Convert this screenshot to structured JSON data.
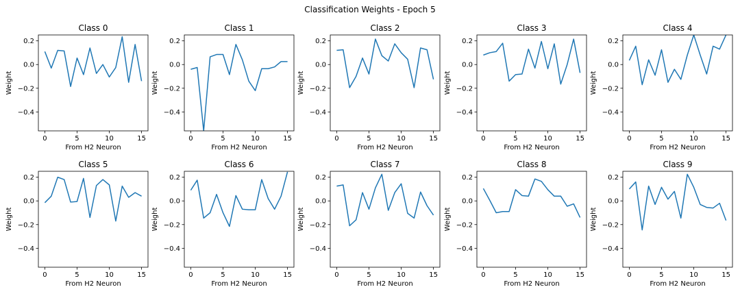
{
  "figure": {
    "title": "Classification Weights - Epoch 5"
  },
  "chart_data": [
    {
      "type": "line",
      "title": "Class 0",
      "xlabel": "From H2 Neuron",
      "ylabel": "Weight",
      "xlim": [
        -1,
        16
      ],
      "ylim": [
        -0.56,
        0.25
      ],
      "xticks": [
        0,
        5,
        10,
        15
      ],
      "yticks": [
        0.2,
        0.0,
        -0.2,
        -0.4
      ],
      "x": [
        0,
        1,
        2,
        3,
        4,
        5,
        6,
        7,
        8,
        9,
        10,
        11,
        12,
        13,
        14,
        15
      ],
      "series": [
        {
          "values": [
            0.11,
            -0.03,
            0.12,
            0.115,
            -0.185,
            0.055,
            -0.085,
            0.14,
            -0.075,
            0.0,
            -0.105,
            -0.025,
            0.235,
            -0.15,
            0.17,
            -0.14
          ]
        }
      ]
    },
    {
      "type": "line",
      "title": "Class 1",
      "xlabel": "From H2 Neuron",
      "ylabel": "Weight",
      "xlim": [
        -1,
        16
      ],
      "ylim": [
        -0.56,
        0.25
      ],
      "xticks": [
        0,
        5,
        10,
        15
      ],
      "yticks": [
        0.2,
        0.0,
        -0.2,
        -0.4
      ],
      "x": [
        0,
        1,
        2,
        3,
        4,
        5,
        6,
        7,
        8,
        9,
        10,
        11,
        12,
        13,
        14,
        15
      ],
      "series": [
        {
          "values": [
            -0.04,
            -0.025,
            -0.56,
            0.065,
            0.085,
            0.085,
            -0.085,
            0.17,
            0.04,
            -0.14,
            -0.22,
            -0.035,
            -0.035,
            -0.02,
            0.025,
            0.025
          ]
        }
      ]
    },
    {
      "type": "line",
      "title": "Class 2",
      "xlabel": "From H2 Neuron",
      "ylabel": "Weight",
      "xlim": [
        -1,
        16
      ],
      "ylim": [
        -0.56,
        0.25
      ],
      "xticks": [
        0,
        5,
        10,
        15
      ],
      "yticks": [
        0.2,
        0.0,
        -0.2,
        -0.4
      ],
      "x": [
        0,
        1,
        2,
        3,
        4,
        5,
        6,
        7,
        8,
        9,
        10,
        11,
        12,
        13,
        14,
        15
      ],
      "series": [
        {
          "values": [
            0.12,
            0.125,
            -0.195,
            -0.1,
            0.055,
            -0.08,
            0.215,
            0.075,
            0.03,
            0.175,
            0.1,
            0.045,
            -0.195,
            0.14,
            0.125,
            -0.125
          ]
        }
      ]
    },
    {
      "type": "line",
      "title": "Class 3",
      "xlabel": "From H2 Neuron",
      "ylabel": "Weight",
      "xlim": [
        -1,
        16
      ],
      "ylim": [
        -0.56,
        0.25
      ],
      "xticks": [
        0,
        5,
        10,
        15
      ],
      "yticks": [
        0.2,
        0.0,
        -0.2,
        -0.4
      ],
      "x": [
        0,
        1,
        2,
        3,
        4,
        5,
        6,
        7,
        8,
        9,
        10,
        11,
        12,
        13,
        14,
        15
      ],
      "series": [
        {
          "values": [
            0.08,
            0.1,
            0.11,
            0.18,
            -0.14,
            -0.085,
            -0.08,
            0.13,
            -0.03,
            0.195,
            -0.035,
            0.175,
            -0.165,
            0.0,
            0.215,
            -0.07
          ]
        }
      ]
    },
    {
      "type": "line",
      "title": "Class 4",
      "xlabel": "From H2 Neuron",
      "ylabel": "Weight",
      "xlim": [
        -1,
        16
      ],
      "ylim": [
        -0.56,
        0.25
      ],
      "xticks": [
        0,
        5,
        10,
        15
      ],
      "yticks": [
        0.2,
        0.0,
        -0.2,
        -0.4
      ],
      "x": [
        0,
        1,
        2,
        3,
        4,
        5,
        6,
        7,
        8,
        9,
        10,
        11,
        12,
        13,
        14,
        15
      ],
      "series": [
        {
          "values": [
            0.035,
            0.155,
            -0.17,
            0.04,
            -0.09,
            0.125,
            -0.15,
            -0.04,
            -0.125,
            0.08,
            0.25,
            0.08,
            -0.08,
            0.155,
            0.13,
            0.25
          ]
        }
      ]
    },
    {
      "type": "line",
      "title": "Class 5",
      "xlabel": "From H2 Neuron",
      "ylabel": "Weight",
      "xlim": [
        -1,
        16
      ],
      "ylim": [
        -0.56,
        0.25
      ],
      "xticks": [
        0,
        5,
        10,
        15
      ],
      "yticks": [
        0.2,
        0.0,
        -0.2,
        -0.4
      ],
      "x": [
        0,
        1,
        2,
        3,
        4,
        5,
        6,
        7,
        8,
        9,
        10,
        11,
        12,
        13,
        14,
        15
      ],
      "series": [
        {
          "values": [
            -0.015,
            0.04,
            0.2,
            0.18,
            -0.01,
            -0.005,
            0.19,
            -0.14,
            0.13,
            0.18,
            0.135,
            -0.17,
            0.125,
            0.03,
            0.07,
            0.04
          ]
        }
      ]
    },
    {
      "type": "line",
      "title": "Class 6",
      "xlabel": "From H2 Neuron",
      "ylabel": "Weight",
      "xlim": [
        -1,
        16
      ],
      "ylim": [
        -0.56,
        0.25
      ],
      "xticks": [
        0,
        5,
        10,
        15
      ],
      "yticks": [
        0.2,
        0.0,
        -0.2,
        -0.4
      ],
      "x": [
        0,
        1,
        2,
        3,
        4,
        5,
        6,
        7,
        8,
        9,
        10,
        11,
        12,
        13,
        14,
        15
      ],
      "series": [
        {
          "values": [
            0.09,
            0.175,
            -0.145,
            -0.1,
            0.055,
            -0.1,
            -0.215,
            0.045,
            -0.07,
            -0.075,
            -0.075,
            0.18,
            0.02,
            -0.07,
            0.04,
            0.245
          ]
        }
      ]
    },
    {
      "type": "line",
      "title": "Class 7",
      "xlabel": "From H2 Neuron",
      "ylabel": "Weight",
      "xlim": [
        -1,
        16
      ],
      "ylim": [
        -0.56,
        0.25
      ],
      "xticks": [
        0,
        5,
        10,
        15
      ],
      "yticks": [
        0.2,
        0.0,
        -0.2,
        -0.4
      ],
      "x": [
        0,
        1,
        2,
        3,
        4,
        5,
        6,
        7,
        8,
        9,
        10,
        11,
        12,
        13,
        14,
        15
      ],
      "series": [
        {
          "values": [
            0.125,
            0.135,
            -0.21,
            -0.16,
            0.07,
            -0.07,
            0.11,
            0.225,
            -0.08,
            0.07,
            0.145,
            -0.105,
            -0.145,
            0.075,
            -0.04,
            -0.12
          ]
        }
      ]
    },
    {
      "type": "line",
      "title": "Class 8",
      "xlabel": "From H2 Neuron",
      "ylabel": "Weight",
      "xlim": [
        -1,
        16
      ],
      "ylim": [
        -0.56,
        0.25
      ],
      "xticks": [
        0,
        5,
        10,
        15
      ],
      "yticks": [
        0.2,
        0.0,
        -0.2,
        -0.4
      ],
      "x": [
        0,
        1,
        2,
        3,
        4,
        5,
        6,
        7,
        8,
        9,
        10,
        11,
        12,
        13,
        14,
        15
      ],
      "series": [
        {
          "values": [
            0.105,
            0.005,
            -0.1,
            -0.09,
            -0.09,
            0.095,
            0.045,
            0.04,
            0.185,
            0.165,
            0.095,
            0.04,
            0.04,
            -0.045,
            -0.025,
            -0.14
          ]
        }
      ]
    },
    {
      "type": "line",
      "title": "Class 9",
      "xlabel": "From H2 Neuron",
      "ylabel": "Weight",
      "xlim": [
        -1,
        16
      ],
      "ylim": [
        -0.56,
        0.25
      ],
      "xticks": [
        0,
        5,
        10,
        15
      ],
      "yticks": [
        0.2,
        0.0,
        -0.2,
        -0.4
      ],
      "x": [
        0,
        1,
        2,
        3,
        4,
        5,
        6,
        7,
        8,
        9,
        10,
        11,
        12,
        13,
        14,
        15
      ],
      "series": [
        {
          "values": [
            0.1,
            0.16,
            -0.245,
            0.125,
            -0.03,
            0.115,
            0.015,
            0.08,
            -0.145,
            0.225,
            0.115,
            -0.03,
            -0.055,
            -0.06,
            -0.02,
            -0.165
          ]
        }
      ]
    }
  ]
}
